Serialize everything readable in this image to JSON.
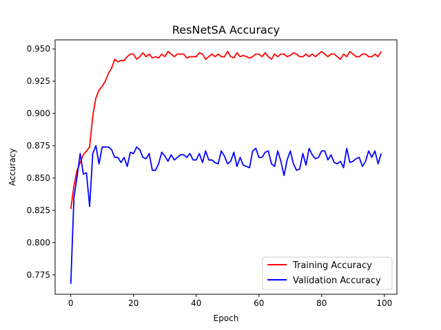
{
  "chart_data": {
    "type": "line",
    "title": "ResNetSA Accuracy",
    "xlabel": "Epoch",
    "ylabel": "Accuracy",
    "xlim": [
      -5,
      104
    ],
    "ylim": [
      0.76,
      0.957
    ],
    "xticks": [
      0,
      20,
      40,
      60,
      80,
      100
    ],
    "yticks": [
      0.775,
      0.8,
      0.825,
      0.85,
      0.875,
      0.9,
      0.925,
      0.95
    ],
    "grid": false,
    "legend_position": "bottom-right",
    "series": [
      {
        "name": "Training Accuracy",
        "color": "#ff0000",
        "values": [
          0.826,
          0.844,
          0.856,
          0.862,
          0.868,
          0.871,
          0.874,
          0.898,
          0.912,
          0.918,
          0.921,
          0.925,
          0.931,
          0.935,
          0.942,
          0.94,
          0.941,
          0.941,
          0.944,
          0.946,
          0.946,
          0.942,
          0.944,
          0.947,
          0.944,
          0.946,
          0.943,
          0.944,
          0.943,
          0.946,
          0.944,
          0.948,
          0.946,
          0.944,
          0.946,
          0.946,
          0.946,
          0.943,
          0.944,
          0.944,
          0.944,
          0.947,
          0.946,
          0.942,
          0.944,
          0.946,
          0.944,
          0.946,
          0.944,
          0.944,
          0.948,
          0.944,
          0.943,
          0.947,
          0.944,
          0.945,
          0.944,
          0.943,
          0.944,
          0.946,
          0.946,
          0.944,
          0.947,
          0.944,
          0.942,
          0.946,
          0.944,
          0.946,
          0.946,
          0.944,
          0.945,
          0.947,
          0.946,
          0.944,
          0.944,
          0.946,
          0.944,
          0.946,
          0.944,
          0.946,
          0.948,
          0.946,
          0.944,
          0.946,
          0.946,
          0.944,
          0.942,
          0.946,
          0.944,
          0.948,
          0.946,
          0.944,
          0.944,
          0.946,
          0.946,
          0.944,
          0.944,
          0.946,
          0.944,
          0.948
        ]
      },
      {
        "name": "Validation Accuracy",
        "color": "#0000ff",
        "values": [
          0.768,
          0.835,
          0.851,
          0.869,
          0.853,
          0.854,
          0.828,
          0.869,
          0.875,
          0.861,
          0.874,
          0.874,
          0.874,
          0.872,
          0.866,
          0.866,
          0.862,
          0.866,
          0.859,
          0.87,
          0.869,
          0.874,
          0.872,
          0.866,
          0.865,
          0.869,
          0.856,
          0.856,
          0.861,
          0.87,
          0.867,
          0.863,
          0.868,
          0.864,
          0.866,
          0.868,
          0.868,
          0.866,
          0.869,
          0.864,
          0.864,
          0.869,
          0.862,
          0.871,
          0.864,
          0.864,
          0.862,
          0.861,
          0.871,
          0.867,
          0.861,
          0.863,
          0.87,
          0.859,
          0.866,
          0.86,
          0.859,
          0.858,
          0.871,
          0.873,
          0.866,
          0.866,
          0.87,
          0.871,
          0.861,
          0.859,
          0.871,
          0.863,
          0.852,
          0.864,
          0.871,
          0.861,
          0.856,
          0.857,
          0.869,
          0.86,
          0.873,
          0.868,
          0.865,
          0.866,
          0.871,
          0.871,
          0.864,
          0.868,
          0.862,
          0.861,
          0.863,
          0.858,
          0.873,
          0.862,
          0.863,
          0.865,
          0.866,
          0.859,
          0.863,
          0.871,
          0.866,
          0.871,
          0.861,
          0.869
        ]
      }
    ]
  }
}
